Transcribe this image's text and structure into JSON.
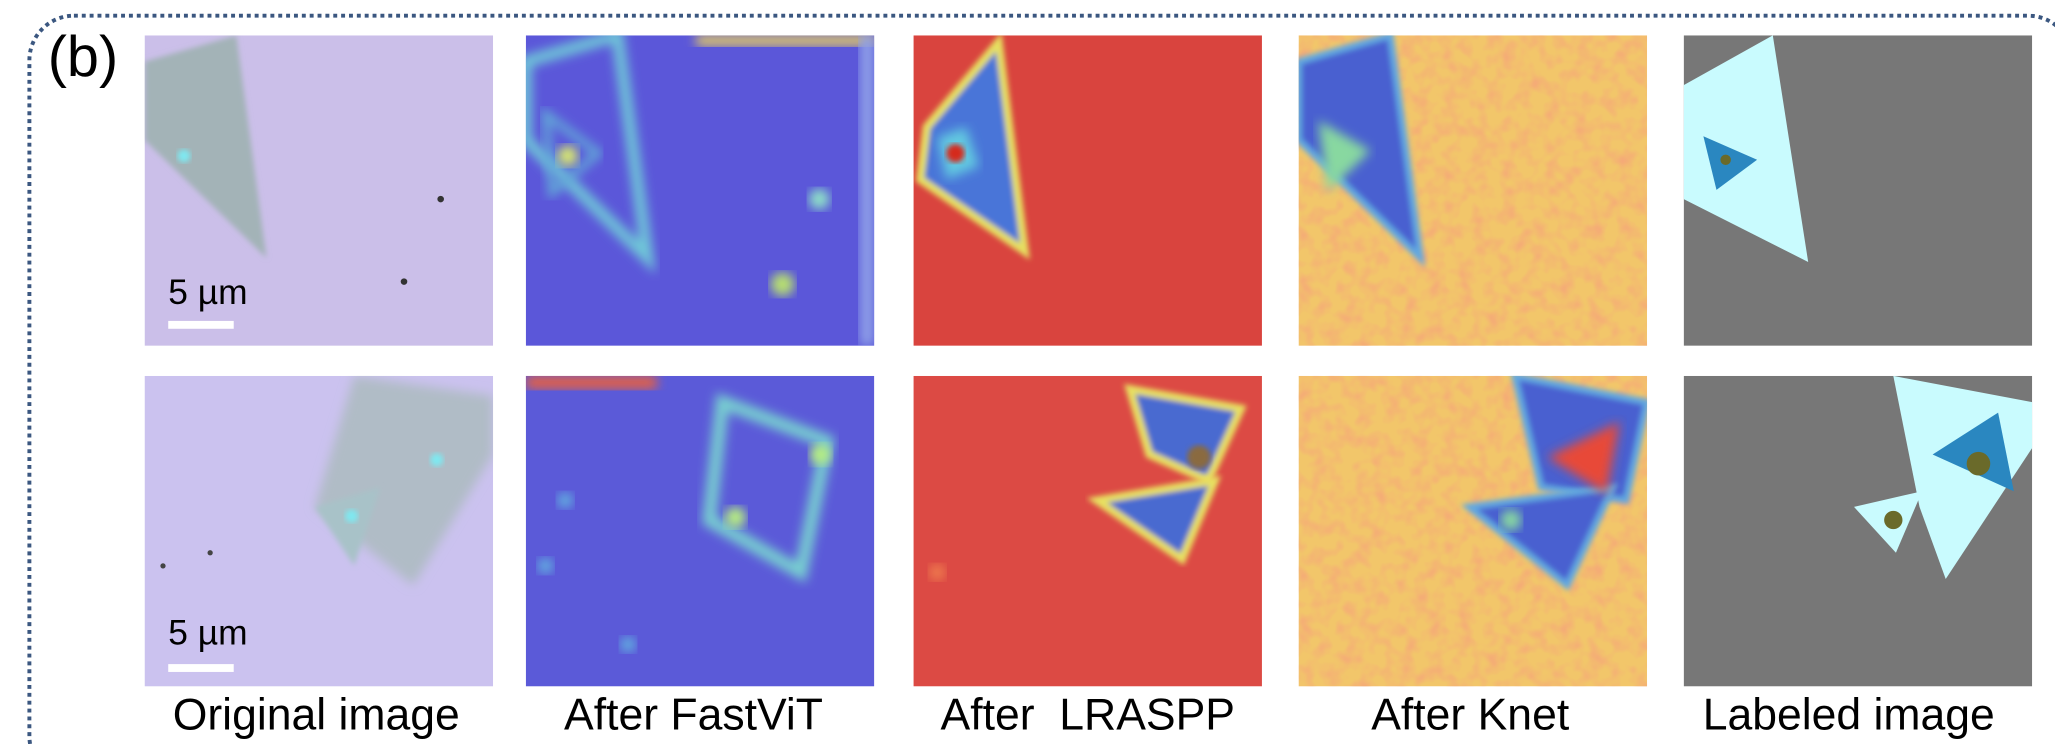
{
  "panel_label": "(b)",
  "scale_bars": [
    "5 µm",
    "5 µm"
  ],
  "columns": [
    "Original image",
    "After FastViT",
    "After  LRASPP",
    "After Knet",
    "Labeled image"
  ]
}
